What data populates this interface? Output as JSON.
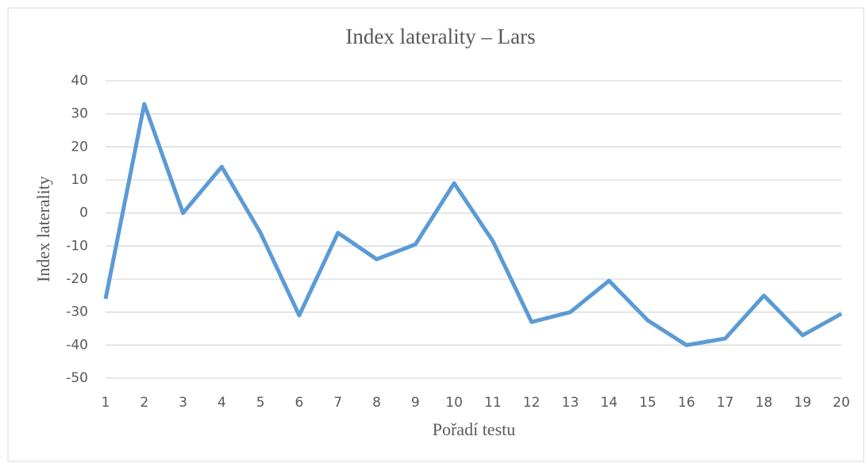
{
  "chart_data": {
    "type": "line",
    "title": "Index laterality – Lars",
    "x_label": "Pořadí testu",
    "y_label": "Index laterality",
    "x": [
      1,
      2,
      3,
      4,
      5,
      6,
      7,
      8,
      9,
      10,
      11,
      12,
      13,
      14,
      15,
      16,
      17,
      18,
      19,
      20
    ],
    "series": [
      {
        "name": "Index laterality",
        "color": "#5b9bd5",
        "values": [
          -26,
          33,
          0,
          14,
          -6,
          -31,
          -6,
          -14,
          -9.5,
          9,
          -8.5,
          -33,
          -30,
          -20.5,
          -32.5,
          -40,
          -38,
          -25,
          -37,
          -30.5
        ]
      }
    ],
    "xlim": [
      1,
      20
    ],
    "xticks": [
      1,
      2,
      3,
      4,
      5,
      6,
      7,
      8,
      9,
      10,
      11,
      12,
      13,
      14,
      15,
      16,
      17,
      18,
      19,
      20
    ],
    "ylim": [
      -50,
      40
    ],
    "yticks": [
      -50,
      -40,
      -30,
      -20,
      -10,
      0,
      10,
      20,
      30,
      40
    ],
    "grid": true
  }
}
